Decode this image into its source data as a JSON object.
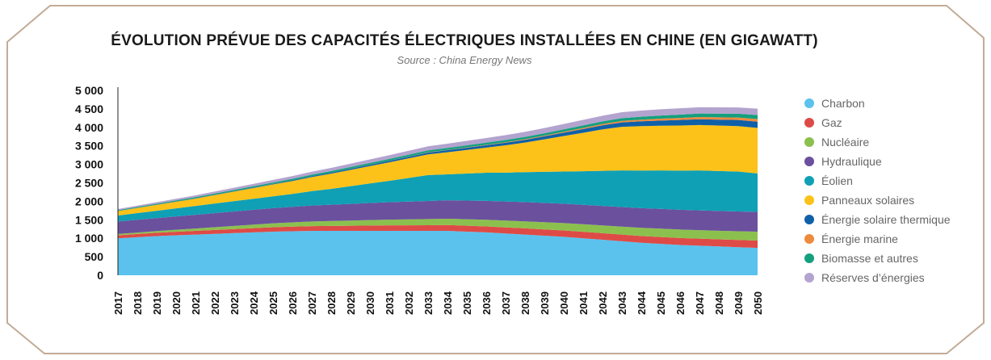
{
  "chart_data": {
    "type": "area",
    "stacked": true,
    "title": "ÉVOLUTION PRÉVUE DES CAPACITÉS ÉLECTRIQUES INSTALLÉES EN CHINE (EN GIGAWATT)",
    "subtitle": "Source : China Energy News",
    "x": [
      2017,
      2018,
      2019,
      2020,
      2021,
      2022,
      2023,
      2024,
      2025,
      2026,
      2027,
      2028,
      2029,
      2030,
      2031,
      2032,
      2033,
      2034,
      2035,
      2036,
      2037,
      2038,
      2039,
      2040,
      2041,
      2042,
      2043,
      2044,
      2045,
      2046,
      2047,
      2048,
      2049,
      2050
    ],
    "y_ticks": [
      0,
      500,
      1000,
      1500,
      2000,
      2500,
      3000,
      3500,
      4000,
      4500,
      5000
    ],
    "y_tick_labels": [
      "0",
      "500",
      "1 000",
      "1 500",
      "2 000",
      "2 500",
      "3 000",
      "3 500",
      "4 000",
      "4 500",
      "5 000"
    ],
    "ylim": [
      0,
      5000
    ],
    "legend_position": "right",
    "series": [
      {
        "name": "Charbon",
        "color": "#5bc2ed",
        "values": [
          1000,
          1030,
          1060,
          1080,
          1100,
          1120,
          1140,
          1160,
          1180,
          1190,
          1200,
          1200,
          1200,
          1200,
          1200,
          1200,
          1200,
          1200,
          1180,
          1160,
          1130,
          1100,
          1070,
          1040,
          1000,
          960,
          920,
          880,
          850,
          820,
          800,
          780,
          760,
          740
        ]
      },
      {
        "name": "Gaz",
        "color": "#de4b47",
        "values": [
          80,
          85,
          90,
          95,
          100,
          105,
          110,
          115,
          120,
          125,
          130,
          135,
          140,
          145,
          150,
          152,
          155,
          158,
          160,
          162,
          165,
          168,
          170,
          172,
          175,
          178,
          180,
          182,
          185,
          188,
          190,
          192,
          195,
          200
        ]
      },
      {
        "name": "Nucléaire",
        "color": "#8cc04e",
        "values": [
          36,
          40,
          45,
          55,
          65,
          75,
          85,
          95,
          105,
          115,
          125,
          132,
          140,
          148,
          155,
          160,
          165,
          170,
          175,
          180,
          185,
          190,
          195,
          200,
          205,
          210,
          215,
          220,
          225,
          228,
          230,
          232,
          235,
          240
        ]
      },
      {
        "name": "Hydraulique",
        "color": "#6b509e",
        "values": [
          340,
          345,
          350,
          360,
          370,
          380,
          390,
          400,
          410,
          420,
          430,
          440,
          450,
          460,
          470,
          480,
          490,
          500,
          505,
          510,
          515,
          520,
          522,
          524,
          525,
          528,
          530,
          532,
          535,
          535,
          535,
          535,
          535,
          535
        ]
      },
      {
        "name": "Éolien",
        "color": "#0fa0b5",
        "values": [
          160,
          180,
          200,
          220,
          240,
          260,
          280,
          300,
          320,
          350,
          390,
          430,
          480,
          530,
          580,
          640,
          700,
          700,
          730,
          760,
          780,
          810,
          840,
          870,
          910,
          950,
          990,
          1020,
          1040,
          1060,
          1080,
          1080,
          1080,
          1040
        ]
      },
      {
        "name": "Panneaux solaires",
        "color": "#fcc219",
        "values": [
          120,
          140,
          160,
          180,
          200,
          230,
          260,
          290,
          320,
          350,
          380,
          410,
          440,
          470,
          500,
          530,
          560,
          600,
          640,
          680,
          740,
          800,
          880,
          960,
          1040,
          1120,
          1180,
          1200,
          1210,
          1220,
          1230,
          1230,
          1230,
          1230
        ]
      },
      {
        "name": "Énergie solaire thermique",
        "color": "#1060a8",
        "values": [
          5,
          6,
          7,
          8,
          9,
          10,
          12,
          14,
          16,
          20,
          24,
          28,
          32,
          36,
          40,
          45,
          50,
          55,
          60,
          65,
          70,
          75,
          80,
          90,
          100,
          110,
          120,
          130,
          140,
          150,
          155,
          160,
          165,
          170
        ]
      },
      {
        "name": "Énergie marine",
        "color": "#ee8a3c",
        "values": [
          0,
          0,
          0,
          0,
          0,
          0,
          0,
          1,
          1,
          1,
          2,
          2,
          3,
          3,
          4,
          5,
          6,
          8,
          10,
          12,
          15,
          18,
          20,
          25,
          30,
          35,
          40,
          45,
          50,
          55,
          60,
          62,
          65,
          70
        ]
      },
      {
        "name": "Biomasse et autres",
        "color": "#14a07e",
        "values": [
          20,
          22,
          24,
          26,
          28,
          30,
          32,
          34,
          36,
          38,
          40,
          42,
          44,
          46,
          48,
          50,
          52,
          54,
          56,
          58,
          60,
          62,
          64,
          66,
          68,
          70,
          75,
          80,
          85,
          90,
          95,
          100,
          105,
          110
        ]
      },
      {
        "name": "Réserves d’énergies",
        "color": "#b3a3cf",
        "values": [
          30,
          35,
          40,
          45,
          50,
          55,
          60,
          65,
          70,
          75,
          80,
          85,
          90,
          95,
          100,
          105,
          110,
          115,
          120,
          125,
          130,
          135,
          140,
          145,
          150,
          155,
          160,
          165,
          170,
          170,
          170,
          170,
          170,
          170
        ]
      }
    ]
  }
}
